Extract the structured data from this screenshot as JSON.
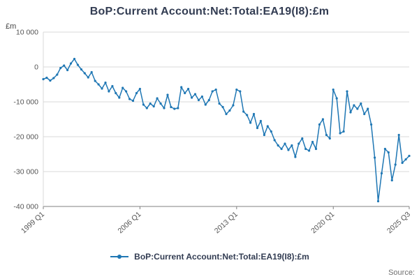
{
  "title": "BoP:Current Account:Net:Total:EA19(I8):£m",
  "y_unit": "£m",
  "source_label": "Source:",
  "legend": {
    "label": "BoP:Current Account:Net:Total:EA19(I8):£m"
  },
  "colors": {
    "line": "#1f77b4",
    "title_text": "#323c52",
    "grid": "#d9d9d9",
    "axis": "#808080",
    "tick_text": "#555555",
    "source_text": "#707070"
  },
  "chart_data": {
    "type": "line",
    "title": "BoP:Current Account:Net:Total:EA19(I8):£m",
    "xlabel": "",
    "ylabel": "£m",
    "ylim": [
      -40000,
      10000
    ],
    "grid": "horizontal-only",
    "legend_position": "bottom-center",
    "y_ticks": [
      10000,
      0,
      -10000,
      -20000,
      -30000,
      -40000
    ],
    "y_tick_labels": [
      "10 000",
      "0",
      "-10 000",
      "-20 000",
      "-30 000",
      "-40 000"
    ],
    "x_tick_labels": [
      "1999 Q1",
      "2006 Q1",
      "2013 Q1",
      "2020 Q1",
      "2025 Q3"
    ],
    "x_tick_indices": [
      0,
      28,
      56,
      84,
      106
    ],
    "x_start": "1999 Q1",
    "x_end": "2025 Q3",
    "x_frequency": "quarterly",
    "series": [
      {
        "name": "BoP:Current Account:Net:Total:EA19(I8):£m",
        "values": [
          -3500,
          -3100,
          -3900,
          -3200,
          -2200,
          -300,
          400,
          -900,
          1000,
          2300,
          600,
          -700,
          -1800,
          -3000,
          -1500,
          -4000,
          -5000,
          -6200,
          -4500,
          -7000,
          -5500,
          -7500,
          -8800,
          -6000,
          -7000,
          -9200,
          -9700,
          -7500,
          -6300,
          -10800,
          -11800,
          -10500,
          -11300,
          -9000,
          -10500,
          -11800,
          -8000,
          -11500,
          -12000,
          -11800,
          -5800,
          -7500,
          -6300,
          -8800,
          -7800,
          -9500,
          -8500,
          -10800,
          -9500,
          -7000,
          -6500,
          -10500,
          -11500,
          -13500,
          -12500,
          -11000,
          -6500,
          -7000,
          -12800,
          -13800,
          -16000,
          -13500,
          -17500,
          -15500,
          -19500,
          -17000,
          -18500,
          -21000,
          -22500,
          -23500,
          -22000,
          -23800,
          -22500,
          -25800,
          -22000,
          -20500,
          -23500,
          -24000,
          -21500,
          -23500,
          -16500,
          -15000,
          -19500,
          -20500,
          -6500,
          -9000,
          -19000,
          -18500,
          -7000,
          -13000,
          -11000,
          -12000,
          -10500,
          -13500,
          -12000,
          -16500,
          -26000,
          -38500,
          -30500,
          -23500,
          -24500,
          -32500,
          -28000,
          -19500,
          -27500,
          -26500,
          -25500
        ]
      }
    ]
  }
}
